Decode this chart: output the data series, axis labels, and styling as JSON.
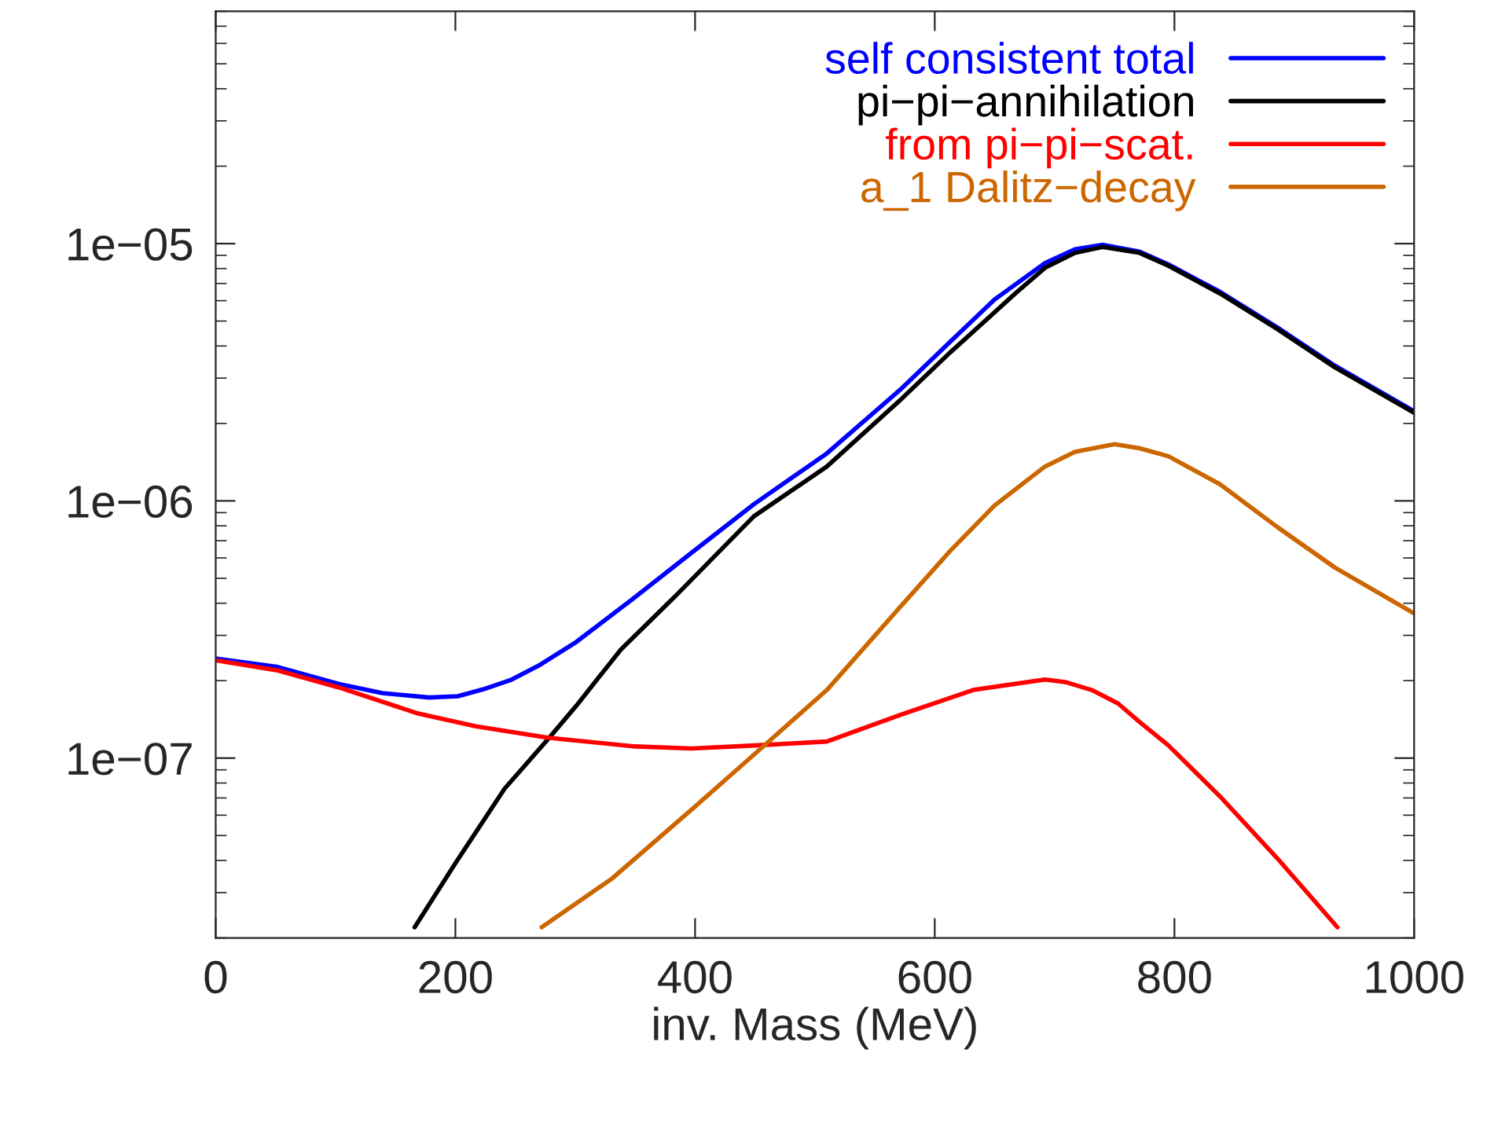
{
  "chart_data": {
    "type": "line",
    "xlabel": "inv. Mass (MeV)",
    "log": "y",
    "xlim": [
      0,
      1000
    ],
    "xticks": [
      0,
      200,
      400,
      600,
      800,
      1000
    ],
    "ylim": [
      2e-08,
      8e-05
    ],
    "yticks": [
      {
        "value": 1e-07,
        "label": "1e−07"
      },
      {
        "value": 1e-06,
        "label": "1e−06"
      },
      {
        "value": 1e-05,
        "label": "1e−05"
      }
    ],
    "legend": "top right",
    "grid": false,
    "marker": "none",
    "line_style": "solid",
    "series": [
      {
        "name": "self consistent total",
        "color": "#0000ff",
        "x": [
          0,
          52,
          103,
          139,
          178,
          202,
          223,
          247,
          271,
          301,
          349,
          397,
          449,
          510,
          571,
          613,
          650,
          692,
          717,
          740,
          771,
          795,
          838,
          886,
          934,
          1000
        ],
        "values": [
          2.44e-07,
          2.26e-07,
          1.94e-07,
          1.79e-07,
          1.72e-07,
          1.74e-07,
          1.85e-07,
          2.02e-07,
          2.31e-07,
          2.83e-07,
          4.19e-07,
          6.28e-07,
          9.7e-07,
          1.53e-06,
          2.7e-06,
          4.16e-06,
          6.07e-06,
          8.4e-06,
          9.5e-06,
          9.9e-06,
          9.3e-06,
          8.3e-06,
          6.5e-06,
          4.72e-06,
          3.35e-06,
          2.23e-06
        ]
      },
      {
        "name": "pi−pi−annihilation",
        "color": "#000000",
        "x": [
          166,
          200,
          241,
          279,
          301,
          338,
          385,
          449,
          510,
          571,
          613,
          668,
          692,
          717,
          740,
          771,
          795,
          838,
          886,
          934,
          1000
        ],
        "values": [
          2.2e-08,
          3.9e-08,
          7.6e-08,
          1.21e-07,
          1.6e-07,
          2.64e-07,
          4.33e-07,
          8.7e-07,
          1.36e-06,
          2.46e-06,
          3.78e-06,
          6.45e-06,
          8.05e-06,
          9.2e-06,
          9.7e-06,
          9.2e-06,
          8.2e-06,
          6.4e-06,
          4.65e-06,
          3.3e-06,
          2.2e-06
        ]
      },
      {
        "name": "from pi−pi−scat.",
        "color": "#ff0000",
        "x": [
          0,
          52,
          103,
          169,
          217,
          277,
          350,
          397,
          450,
          510,
          571,
          632,
          692,
          710,
          731,
          753,
          771,
          795,
          838,
          886,
          936
        ],
        "values": [
          2.4e-07,
          2.19e-07,
          1.88e-07,
          1.49e-07,
          1.33e-07,
          1.2e-07,
          1.11e-07,
          1.09e-07,
          1.12e-07,
          1.16e-07,
          1.47e-07,
          1.84e-07,
          2.02e-07,
          1.97e-07,
          1.84e-07,
          1.63e-07,
          1.38e-07,
          1.12e-07,
          7.1e-08,
          4.07e-08,
          2.2e-08
        ]
      },
      {
        "name": "a_1 Dalitz−decay",
        "color": "#cc6600",
        "x": [
          272,
          331,
          397,
          449,
          510,
          571,
          613,
          650,
          692,
          717,
          750,
          771,
          795,
          838,
          886,
          934,
          1000
        ],
        "values": [
          2.2e-08,
          3.41e-08,
          6.3e-08,
          1.03e-07,
          1.84e-07,
          3.86e-07,
          6.4e-07,
          9.6e-07,
          1.36e-06,
          1.55e-06,
          1.66e-06,
          1.6e-06,
          1.49e-06,
          1.16e-06,
          7.9e-07,
          5.5e-07,
          3.65e-07
        ]
      }
    ]
  }
}
